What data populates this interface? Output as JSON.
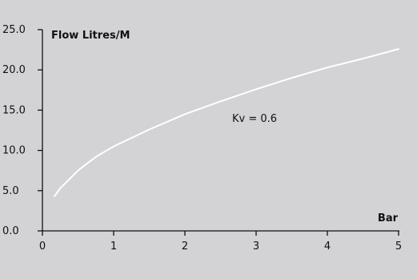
{
  "chart_data": {
    "type": "line",
    "title": "",
    "xlabel": "Bar",
    "ylabel": "Flow Litres/M",
    "xlim": [
      0,
      5
    ],
    "ylim": [
      0,
      25
    ],
    "x_ticks": [
      "0",
      "1",
      "2",
      "3",
      "4",
      "5"
    ],
    "y_ticks": [
      "0.0",
      "5.0",
      "10.0",
      "15.0",
      "20.0",
      "25.0"
    ],
    "grid": false,
    "annotation": "Kv = 0.6",
    "series": [
      {
        "color": "#ffffff",
        "x": [
          0.17,
          0.25,
          0.5,
          0.75,
          1.0,
          1.5,
          2.0,
          2.5,
          3.0,
          3.5,
          4.0,
          4.5,
          5.0
        ],
        "y": [
          4.3,
          5.3,
          7.5,
          9.2,
          10.5,
          12.6,
          14.5,
          16.1,
          17.6,
          19.0,
          20.3,
          21.4,
          22.6
        ]
      }
    ]
  },
  "colors": {
    "background": "#ffffff",
    "plot_area": "#d3d3d5",
    "axis": "#111111",
    "curve": "#ffffff"
  }
}
